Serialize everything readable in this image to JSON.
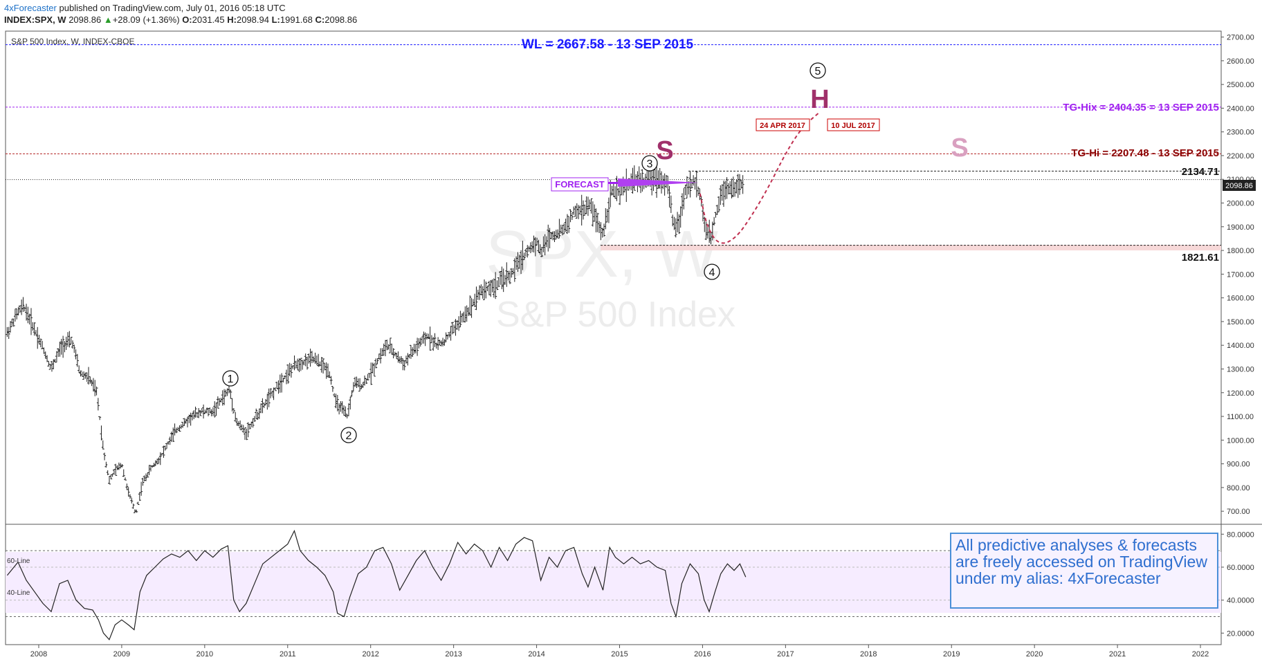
{
  "header": {
    "author": "4xForecaster",
    "published": "published on TradingView.com, July 01, 2016 05:18 UTC",
    "symbol": "INDEX:SPX, W",
    "last": "2098.86",
    "change": "+28.09 (+1.36%)",
    "o_label": "O:",
    "o": "2031.45",
    "h_label": "H:",
    "h": "2098.94",
    "l_label": "L:",
    "l": "1991.68",
    "c_label": "C:",
    "c": "2098.86"
  },
  "chart_title": "S&P 500 Index, W, INDEX-CBOE",
  "watermark": {
    "symbol": "SPX, W",
    "name": "S&P 500 Index"
  },
  "annotations": {
    "wl": "WL = 2667.58 - 13 SEP 2015",
    "tg_hix": "TG-Hix = 2404.35 = 13 SEP 2015",
    "tg_hi": "TG-Hi = 2207.48 - 13 SEP 2015",
    "level_high": "2134.71",
    "level_low": "1821.61",
    "current": "2098.86",
    "forecast": "FORECAST",
    "date1": "24 APR 2017",
    "date2": "10 JUL 2017",
    "h_mark": "H",
    "s_mark": "S",
    "s_mark2": "S",
    "waves": [
      "1",
      "2",
      "3",
      "4",
      "5"
    ],
    "rsi_60": "60-Line",
    "rsi_40": "40-Line",
    "note": "All predictive analyses & forecasts are freely accessed on TradingView under my alias: 4xForecaster"
  },
  "colors": {
    "wl_line": "#1a1aff",
    "tg_hix": "#a020f0",
    "tg_hi": "#8b0000",
    "h_mark": "#a0306a",
    "s_mark2": "#d9a0c0",
    "forecast_box": "#a020f0",
    "note_text": "#2f6fcf"
  },
  "chart_data": {
    "type": "candlestick",
    "price_axis": [
      "2700.00",
      "2600.00",
      "2500.00",
      "2400.00",
      "2300.00",
      "2200.00",
      "2100.00",
      "2000.00",
      "1900.00",
      "1800.00",
      "1700.00",
      "1600.00",
      "1500.00",
      "1400.00",
      "1300.00",
      "1200.00",
      "1100.00",
      "1000.00",
      "900.00",
      "800.00",
      "700.00"
    ],
    "price_ticks": [
      2700,
      2600,
      2500,
      2400,
      2300,
      2200,
      2100,
      2000,
      1900,
      1800,
      1700,
      1600,
      1500,
      1400,
      1300,
      1200,
      1100,
      1000,
      900,
      800,
      700
    ],
    "rsi_axis": [
      "80.0000",
      "60.0000",
      "40.0000",
      "20.0000"
    ],
    "rsi_ticks": [
      80,
      60,
      40,
      20
    ],
    "years": [
      "2008",
      "2009",
      "2010",
      "2011",
      "2012",
      "2013",
      "2014",
      "2015",
      "2016",
      "2017",
      "2018",
      "2019",
      "2020",
      "2021",
      "2022"
    ],
    "year_values": [
      2008,
      2009,
      2010,
      2011,
      2012,
      2013,
      2014,
      2015,
      2016,
      2017,
      2018,
      2019,
      2020,
      2021,
      2022
    ],
    "x_range": [
      2007.6,
      2022.25
    ],
    "price_range": [
      645,
      2725
    ],
    "rsi_range": [
      13,
      86
    ],
    "hlines": {
      "wl": 2667.58,
      "tg_hix": 2404.35,
      "tg_hi": 2207.48,
      "level_high": 2134.71,
      "current": 2098.86,
      "level_low": 1821.61
    },
    "rsi_hlines": {
      "upper": 70,
      "line60": 60,
      "line40": 40,
      "lower": 30
    },
    "price_path": [
      [
        2007.62,
        1450
      ],
      [
        2007.75,
        1540
      ],
      [
        2007.82,
        1565
      ],
      [
        2007.92,
        1490
      ],
      [
        2008.05,
        1390
      ],
      [
        2008.15,
        1300
      ],
      [
        2008.28,
        1400
      ],
      [
        2008.4,
        1420
      ],
      [
        2008.5,
        1280
      ],
      [
        2008.6,
        1265
      ],
      [
        2008.7,
        1200
      ],
      [
        2008.78,
        960
      ],
      [
        2008.85,
        830
      ],
      [
        2008.92,
        870
      ],
      [
        2009.0,
        900
      ],
      [
        2009.08,
        780
      ],
      [
        2009.17,
        690
      ],
      [
        2009.25,
        820
      ],
      [
        2009.35,
        880
      ],
      [
        2009.45,
        920
      ],
      [
        2009.55,
        980
      ],
      [
        2009.65,
        1040
      ],
      [
        2009.75,
        1070
      ],
      [
        2009.85,
        1100
      ],
      [
        2009.95,
        1120
      ],
      [
        2010.1,
        1120
      ],
      [
        2010.2,
        1170
      ],
      [
        2010.3,
        1215
      ],
      [
        2010.38,
        1080
      ],
      [
        2010.45,
        1050
      ],
      [
        2010.5,
        1030
      ],
      [
        2010.6,
        1090
      ],
      [
        2010.7,
        1140
      ],
      [
        2010.8,
        1190
      ],
      [
        2010.9,
        1240
      ],
      [
        2011.0,
        1280
      ],
      [
        2011.1,
        1320
      ],
      [
        2011.2,
        1330
      ],
      [
        2011.3,
        1345
      ],
      [
        2011.4,
        1320
      ],
      [
        2011.5,
        1290
      ],
      [
        2011.58,
        1160
      ],
      [
        2011.65,
        1130
      ],
      [
        2011.72,
        1100
      ],
      [
        2011.8,
        1240
      ],
      [
        2011.9,
        1230
      ],
      [
        2012.0,
        1280
      ],
      [
        2012.1,
        1350
      ],
      [
        2012.2,
        1400
      ],
      [
        2012.3,
        1360
      ],
      [
        2012.4,
        1320
      ],
      [
        2012.5,
        1370
      ],
      [
        2012.6,
        1410
      ],
      [
        2012.7,
        1440
      ],
      [
        2012.8,
        1400
      ],
      [
        2012.9,
        1420
      ],
      [
        2013.0,
        1470
      ],
      [
        2013.1,
        1510
      ],
      [
        2013.2,
        1560
      ],
      [
        2013.3,
        1620
      ],
      [
        2013.4,
        1640
      ],
      [
        2013.5,
        1650
      ],
      [
        2013.6,
        1680
      ],
      [
        2013.7,
        1700
      ],
      [
        2013.8,
        1760
      ],
      [
        2013.9,
        1800
      ],
      [
        2014.0,
        1840
      ],
      [
        2014.05,
        1790
      ],
      [
        2014.15,
        1860
      ],
      [
        2014.25,
        1870
      ],
      [
        2014.35,
        1900
      ],
      [
        2014.45,
        1960
      ],
      [
        2014.55,
        1970
      ],
      [
        2014.65,
        1990
      ],
      [
        2014.75,
        1900
      ],
      [
        2014.8,
        1870
      ],
      [
        2014.9,
        2050
      ],
      [
        2015.0,
        2040
      ],
      [
        2015.1,
        2080
      ],
      [
        2015.2,
        2100
      ],
      [
        2015.3,
        2090
      ],
      [
        2015.4,
        2110
      ],
      [
        2015.5,
        2100
      ],
      [
        2015.58,
        2080
      ],
      [
        2015.65,
        1900
      ],
      [
        2015.72,
        1920
      ],
      [
        2015.8,
        2070
      ],
      [
        2015.9,
        2090
      ],
      [
        2015.97,
        2040
      ],
      [
        2016.03,
        1890
      ],
      [
        2016.1,
        1850
      ],
      [
        2016.15,
        1940
      ],
      [
        2016.22,
        2040
      ],
      [
        2016.3,
        2070
      ],
      [
        2016.38,
        2060
      ],
      [
        2016.45,
        2080
      ],
      [
        2016.5,
        2060
      ]
    ],
    "rsi_path": [
      [
        2007.62,
        55
      ],
      [
        2007.75,
        63
      ],
      [
        2007.85,
        52
      ],
      [
        2007.95,
        45
      ],
      [
        2008.05,
        38
      ],
      [
        2008.15,
        33
      ],
      [
        2008.25,
        50
      ],
      [
        2008.35,
        52
      ],
      [
        2008.45,
        40
      ],
      [
        2008.55,
        35
      ],
      [
        2008.65,
        34
      ],
      [
        2008.72,
        28
      ],
      [
        2008.78,
        20
      ],
      [
        2008.85,
        16
      ],
      [
        2008.92,
        25
      ],
      [
        2009.0,
        28
      ],
      [
        2009.08,
        25
      ],
      [
        2009.15,
        22
      ],
      [
        2009.22,
        45
      ],
      [
        2009.3,
        55
      ],
      [
        2009.4,
        60
      ],
      [
        2009.5,
        65
      ],
      [
        2009.6,
        68
      ],
      [
        2009.7,
        66
      ],
      [
        2009.8,
        70
      ],
      [
        2009.9,
        64
      ],
      [
        2010.0,
        70
      ],
      [
        2010.1,
        66
      ],
      [
        2010.2,
        71
      ],
      [
        2010.28,
        73
      ],
      [
        2010.35,
        40
      ],
      [
        2010.42,
        33
      ],
      [
        2010.5,
        38
      ],
      [
        2010.6,
        50
      ],
      [
        2010.7,
        62
      ],
      [
        2010.8,
        66
      ],
      [
        2010.9,
        70
      ],
      [
        2011.0,
        74
      ],
      [
        2011.08,
        82
      ],
      [
        2011.15,
        70
      ],
      [
        2011.25,
        64
      ],
      [
        2011.35,
        60
      ],
      [
        2011.45,
        55
      ],
      [
        2011.55,
        45
      ],
      [
        2011.6,
        32
      ],
      [
        2011.68,
        30
      ],
      [
        2011.75,
        42
      ],
      [
        2011.85,
        56
      ],
      [
        2011.95,
        60
      ],
      [
        2012.05,
        70
      ],
      [
        2012.15,
        72
      ],
      [
        2012.25,
        62
      ],
      [
        2012.35,
        46
      ],
      [
        2012.45,
        55
      ],
      [
        2012.55,
        64
      ],
      [
        2012.65,
        70
      ],
      [
        2012.75,
        60
      ],
      [
        2012.85,
        52
      ],
      [
        2012.95,
        62
      ],
      [
        2013.05,
        75
      ],
      [
        2013.15,
        68
      ],
      [
        2013.25,
        74
      ],
      [
        2013.35,
        70
      ],
      [
        2013.45,
        60
      ],
      [
        2013.55,
        72
      ],
      [
        2013.65,
        64
      ],
      [
        2013.75,
        74
      ],
      [
        2013.85,
        78
      ],
      [
        2013.95,
        76
      ],
      [
        2014.05,
        52
      ],
      [
        2014.15,
        66
      ],
      [
        2014.25,
        60
      ],
      [
        2014.35,
        70
      ],
      [
        2014.45,
        72
      ],
      [
        2014.55,
        56
      ],
      [
        2014.62,
        48
      ],
      [
        2014.7,
        60
      ],
      [
        2014.8,
        46
      ],
      [
        2014.88,
        72
      ],
      [
        2014.95,
        66
      ],
      [
        2015.05,
        62
      ],
      [
        2015.15,
        66
      ],
      [
        2015.25,
        62
      ],
      [
        2015.35,
        64
      ],
      [
        2015.45,
        60
      ],
      [
        2015.55,
        58
      ],
      [
        2015.62,
        38
      ],
      [
        2015.68,
        30
      ],
      [
        2015.75,
        50
      ],
      [
        2015.85,
        62
      ],
      [
        2015.95,
        56
      ],
      [
        2016.02,
        40
      ],
      [
        2016.08,
        33
      ],
      [
        2016.15,
        45
      ],
      [
        2016.22,
        56
      ],
      [
        2016.3,
        62
      ],
      [
        2016.38,
        58
      ],
      [
        2016.45,
        62
      ],
      [
        2016.52,
        54
      ]
    ],
    "forecast_path": [
      [
        2015.97,
        2040
      ],
      [
        2016.05,
        1900
      ],
      [
        2016.2,
        1820
      ],
      [
        2016.4,
        1850
      ],
      [
        2016.6,
        1950
      ],
      [
        2016.8,
        2070
      ],
      [
        2017.0,
        2210
      ],
      [
        2017.2,
        2320
      ],
      [
        2017.4,
        2380
      ]
    ]
  }
}
